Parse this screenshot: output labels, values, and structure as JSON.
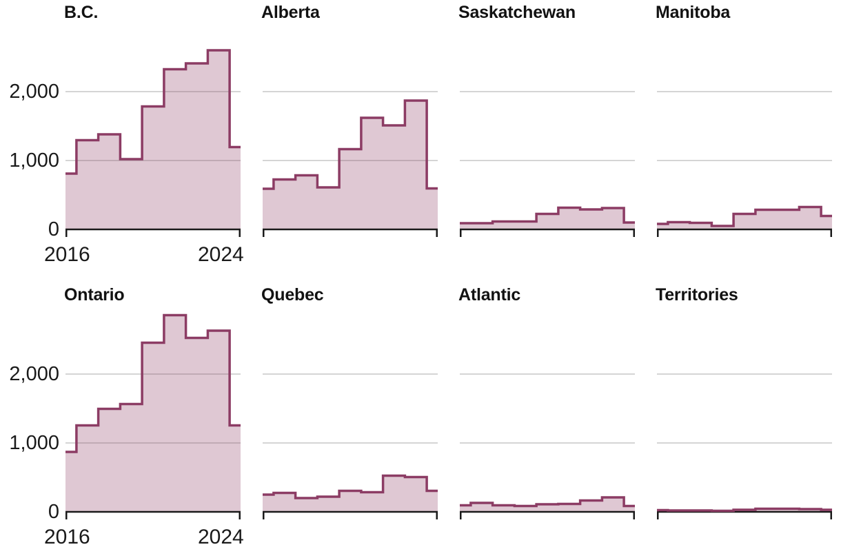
{
  "chart_data": {
    "type": "area",
    "subtype": "step-mid",
    "title": "",
    "x": [
      2016,
      2017,
      2018,
      2019,
      2020,
      2021,
      2022,
      2023,
      2024
    ],
    "x_tick_labels": [
      "2016",
      "2024"
    ],
    "y_tick_labels": [
      "2,000",
      "1,000",
      "0"
    ],
    "y_tick_values": [
      2000,
      1000,
      0
    ],
    "ylim": [
      0,
      2900
    ],
    "gridline_values": [
      1000,
      2000
    ],
    "grid": "horizontal-only",
    "legend_position": "none",
    "panels": [
      {
        "title": "B.C.",
        "values": [
          810,
          1295,
          1380,
          1020,
          1785,
          2325,
          2410,
          2600,
          1195
        ]
      },
      {
        "title": "Alberta",
        "values": [
          590,
          725,
          785,
          610,
          1165,
          1620,
          1510,
          1870,
          595
        ]
      },
      {
        "title": "Saskatchewan",
        "values": [
          90,
          90,
          115,
          115,
          225,
          315,
          290,
          310,
          100
        ]
      },
      {
        "title": "Manitoba",
        "values": [
          80,
          105,
          95,
          50,
          225,
          285,
          285,
          325,
          195
        ]
      },
      {
        "title": "Ontario",
        "values": [
          870,
          1255,
          1495,
          1565,
          2455,
          2855,
          2525,
          2630,
          1255
        ]
      },
      {
        "title": "Quebec",
        "values": [
          250,
          275,
          200,
          220,
          305,
          285,
          525,
          505,
          305
        ]
      },
      {
        "title": "Atlantic",
        "values": [
          95,
          130,
          95,
          85,
          110,
          115,
          165,
          210,
          85
        ]
      },
      {
        "title": "Territories",
        "values": [
          25,
          20,
          20,
          15,
          30,
          45,
          45,
          40,
          30
        ]
      }
    ],
    "colors": {
      "line": "#8c3c64",
      "fill": "rgba(141,58,98,0.28)",
      "gridline": "#c7c7c7",
      "axis": "#1a1a1a",
      "text": "#121212"
    }
  }
}
